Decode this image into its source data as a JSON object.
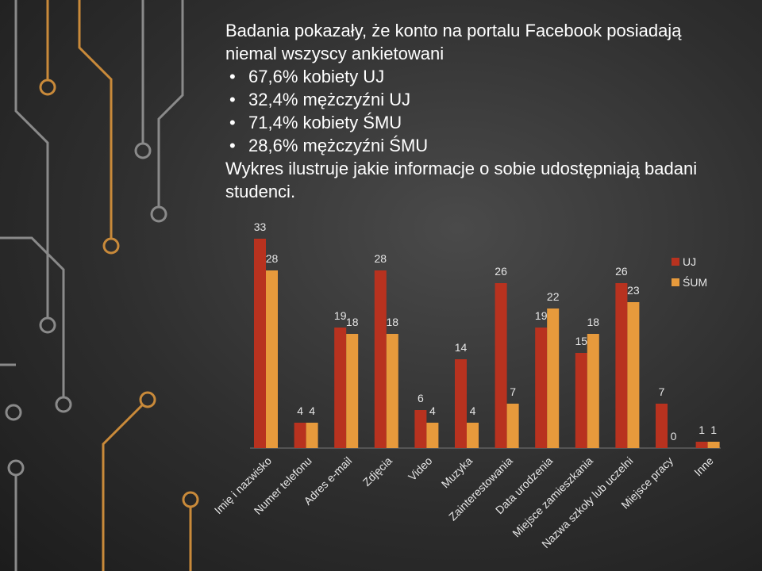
{
  "slide": {
    "heading": "Badania pokazały, że konto na portalu Facebook posiadają niemal wszyscy ankietowani",
    "bullets": [
      "67,6% kobiety UJ",
      "32,4% mężczyźni UJ",
      "71,4% kobiety ŚMU",
      "28,6% mężczyźni ŚMU"
    ],
    "caption": "Wykres ilustruje jakie informacje o sobie udostępniają badani studenci."
  },
  "chart_data": {
    "type": "bar",
    "categories": [
      "Imię i nazwisko",
      "Numer telefonu",
      "Adres e-mail",
      "Zdjęcia",
      "Video",
      "Muzyka",
      "Zainterestowania",
      "Data urodzenia",
      "Miejsce zamieszkania",
      "Nazwa szkoły lub uczelni",
      "Miejsce pracy",
      "Inne"
    ],
    "series": [
      {
        "name": "UJ",
        "color": "#b8321f",
        "values": [
          33,
          4,
          19,
          28,
          6,
          14,
          26,
          19,
          15,
          26,
          7,
          1
        ]
      },
      {
        "name": "ŚUM",
        "color": "#e79a3c",
        "values": [
          28,
          4,
          18,
          18,
          4,
          4,
          7,
          22,
          18,
          23,
          0,
          1
        ]
      }
    ],
    "legend": "right"
  }
}
